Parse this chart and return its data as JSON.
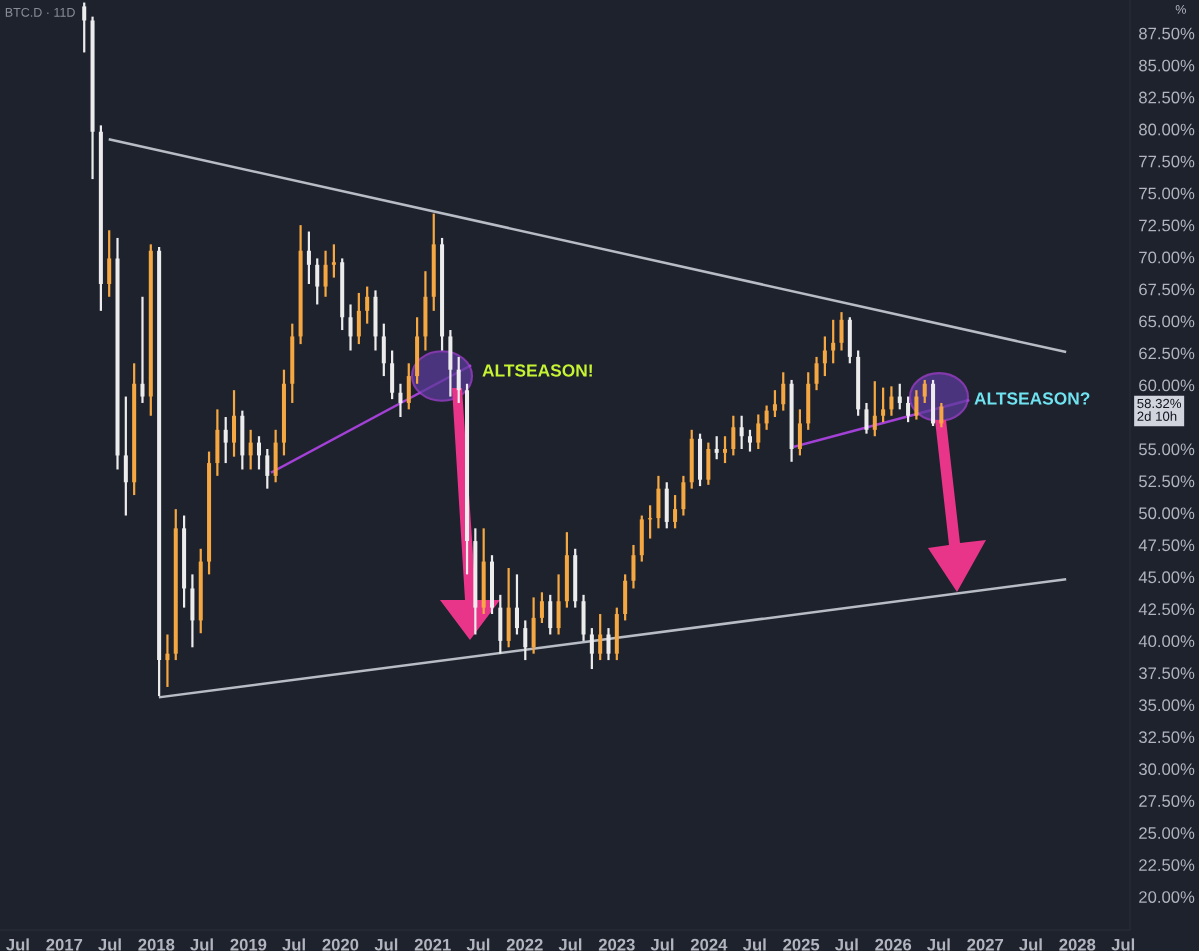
{
  "chart_data": {
    "type": "candlestick",
    "title": "BTC.D · 11D",
    "ylabel": "%",
    "x": [
      "2017-03-21",
      "2017-04-23",
      "2017-05-26",
      "2017-06-28",
      "2017-07-31",
      "2017-09-02",
      "2017-10-05",
      "2017-11-07",
      "2017-12-10",
      "2018-01-12",
      "2018-02-14",
      "2018-03-19",
      "2018-04-21",
      "2018-05-24",
      "2018-06-26",
      "2018-07-29",
      "2018-08-31",
      "2018-10-03",
      "2018-11-05",
      "2018-12-08",
      "2019-01-10",
      "2019-02-12",
      "2019-03-17",
      "2019-04-19",
      "2019-05-22",
      "2019-06-24",
      "2019-07-27",
      "2019-08-29",
      "2019-10-01",
      "2019-11-03",
      "2019-12-06",
      "2020-01-08",
      "2020-02-10",
      "2020-03-14",
      "2020-04-16",
      "2020-05-19",
      "2020-06-21",
      "2020-07-24",
      "2020-08-26",
      "2020-09-28",
      "2020-10-31",
      "2020-12-03",
      "2021-01-05",
      "2021-02-07",
      "2021-03-12",
      "2021-04-14",
      "2021-05-17",
      "2021-06-19",
      "2021-07-22",
      "2021-08-24",
      "2021-09-26",
      "2021-10-29",
      "2021-12-01",
      "2022-01-03",
      "2022-02-05",
      "2022-03-10",
      "2022-04-12",
      "2022-05-15",
      "2022-06-17",
      "2022-07-20",
      "2022-08-22",
      "2022-09-24",
      "2022-10-27",
      "2022-11-29",
      "2023-01-01",
      "2023-02-03",
      "2023-03-08",
      "2023-04-10",
      "2023-05-13",
      "2023-06-15",
      "2023-07-18",
      "2023-08-20",
      "2023-09-22",
      "2023-10-25",
      "2023-11-27",
      "2023-12-30",
      "2024-02-01",
      "2024-03-05",
      "2024-04-07",
      "2024-05-10",
      "2024-06-12",
      "2024-07-15",
      "2024-08-17",
      "2024-09-19",
      "2024-10-22",
      "2024-11-24",
      "2024-12-27",
      "2025-01-29",
      "2025-03-03",
      "2025-04-05",
      "2025-05-08",
      "2025-06-10",
      "2025-07-13",
      "2025-08-15",
      "2025-09-17",
      "2025-10-20",
      "2025-11-22",
      "2025-12-25",
      "2026-01-27",
      "2026-03-01",
      "2026-04-03",
      "2026-05-06",
      "2026-06-08",
      "2026-07-11"
    ],
    "ohlc": [
      [
        89.6,
        89.9,
        86.0,
        88.5
      ],
      [
        88.5,
        88.8,
        76.1,
        79.8
      ],
      [
        79.8,
        80.3,
        65.8,
        67.9
      ],
      [
        67.9,
        72.1,
        66.9,
        69.9
      ],
      [
        69.9,
        71.5,
        53.4,
        54.5
      ],
      [
        54.5,
        59.1,
        49.8,
        52.4
      ],
      [
        52.4,
        61.7,
        51.4,
        60.1
      ],
      [
        60.1,
        66.9,
        58.6,
        59.1
      ],
      [
        59.1,
        71.0,
        57.6,
        70.5
      ],
      [
        70.5,
        70.8,
        35.7,
        38.5
      ],
      [
        38.5,
        40.5,
        36.4,
        39.0
      ],
      [
        39.0,
        50.3,
        38.5,
        48.8
      ],
      [
        48.8,
        49.8,
        42.6,
        44.1
      ],
      [
        44.1,
        45.2,
        39.5,
        41.6
      ],
      [
        41.6,
        47.2,
        40.6,
        46.2
      ],
      [
        46.2,
        54.8,
        45.2,
        53.9
      ],
      [
        53.9,
        58.1,
        52.9,
        56.5
      ],
      [
        56.5,
        57.5,
        53.9,
        55.5
      ],
      [
        55.5,
        59.6,
        54.4,
        57.6
      ],
      [
        57.6,
        58.0,
        53.4,
        54.5
      ],
      [
        54.5,
        56.5,
        53.4,
        55.5
      ],
      [
        55.5,
        56.0,
        53.4,
        54.5
      ],
      [
        54.5,
        55.0,
        51.9,
        52.9
      ],
      [
        52.9,
        56.5,
        52.4,
        55.5
      ],
      [
        55.5,
        61.2,
        54.5,
        60.1
      ],
      [
        60.1,
        64.8,
        58.6,
        63.8
      ],
      [
        63.8,
        72.5,
        63.2,
        70.5
      ],
      [
        70.5,
        72.0,
        67.9,
        69.4
      ],
      [
        69.4,
        69.9,
        66.3,
        67.7
      ],
      [
        67.7,
        70.5,
        66.9,
        69.4
      ],
      [
        69.4,
        71.0,
        68.4,
        69.6
      ],
      [
        69.6,
        69.9,
        64.3,
        65.3
      ],
      [
        65.3,
        66.3,
        62.7,
        63.8
      ],
      [
        63.8,
        67.2,
        63.2,
        65.8
      ],
      [
        65.8,
        67.7,
        64.8,
        66.9
      ],
      [
        66.9,
        67.4,
        62.7,
        63.8
      ],
      [
        63.8,
        64.8,
        60.7,
        61.7
      ],
      [
        61.7,
        62.7,
        58.9,
        59.4
      ],
      [
        59.4,
        60.1,
        57.5,
        58.6
      ],
      [
        58.6,
        61.7,
        58.1,
        60.7
      ],
      [
        60.7,
        65.3,
        60.1,
        63.8
      ],
      [
        63.8,
        68.9,
        62.7,
        66.9
      ],
      [
        66.9,
        73.4,
        65.8,
        71.0
      ],
      [
        71.0,
        71.5,
        62.7,
        63.8
      ],
      [
        63.8,
        64.3,
        59.1,
        61.2
      ],
      [
        61.2,
        62.2,
        58.6,
        59.6
      ],
      [
        59.6,
        60.1,
        45.2,
        47.8
      ],
      [
        47.8,
        48.8,
        40.5,
        42.6
      ],
      [
        42.6,
        48.8,
        42.1,
        46.2
      ],
      [
        46.2,
        46.7,
        42.1,
        42.6
      ],
      [
        42.6,
        43.6,
        39.0,
        40.0
      ],
      [
        40.0,
        45.7,
        39.5,
        42.6
      ],
      [
        42.6,
        45.2,
        40.5,
        41.0
      ],
      [
        41.0,
        41.6,
        38.5,
        39.5
      ],
      [
        39.5,
        43.4,
        39.0,
        41.8
      ],
      [
        41.8,
        43.8,
        41.4,
        43.1
      ],
      [
        43.1,
        43.6,
        40.5,
        41.0
      ],
      [
        41.0,
        45.2,
        40.5,
        43.1
      ],
      [
        43.1,
        48.5,
        42.6,
        46.7
      ],
      [
        46.7,
        47.2,
        42.6,
        43.1
      ],
      [
        43.1,
        43.6,
        40.0,
        40.5
      ],
      [
        40.5,
        41.0,
        37.8,
        39.0
      ],
      [
        39.0,
        42.1,
        38.5,
        40.5
      ],
      [
        40.5,
        41.0,
        38.5,
        39.0
      ],
      [
        39.0,
        42.6,
        38.5,
        42.1
      ],
      [
        42.1,
        45.2,
        41.6,
        44.7
      ],
      [
        44.7,
        47.5,
        44.1,
        46.7
      ],
      [
        46.7,
        49.8,
        46.2,
        49.5
      ],
      [
        49.5,
        50.6,
        48.0,
        49.6
      ],
      [
        49.6,
        52.9,
        48.8,
        51.9
      ],
      [
        51.9,
        52.4,
        48.8,
        49.3
      ],
      [
        49.3,
        51.4,
        48.8,
        50.3
      ],
      [
        50.3,
        52.9,
        49.8,
        52.4
      ],
      [
        52.4,
        56.5,
        51.9,
        55.8
      ],
      [
        55.8,
        56.2,
        52.1,
        52.6
      ],
      [
        52.6,
        55.5,
        52.2,
        55.0
      ],
      [
        55.0,
        56.0,
        54.2,
        54.7
      ],
      [
        54.7,
        56.0,
        53.9,
        55.0
      ],
      [
        55.0,
        57.6,
        54.5,
        56.7
      ],
      [
        56.7,
        57.6,
        55.0,
        56.0
      ],
      [
        56.0,
        56.5,
        54.8,
        55.5
      ],
      [
        55.5,
        57.7,
        55.0,
        57.0
      ],
      [
        57.0,
        58.4,
        56.5,
        58.0
      ],
      [
        58.0,
        59.6,
        57.5,
        58.5
      ],
      [
        58.5,
        61.0,
        58.0,
        60.1
      ],
      [
        60.1,
        60.4,
        54.0,
        55.0
      ],
      [
        55.0,
        58.1,
        54.5,
        57.0
      ],
      [
        57.0,
        61.0,
        56.5,
        60.1
      ],
      [
        60.1,
        62.2,
        59.6,
        61.7
      ],
      [
        61.7,
        63.8,
        60.7,
        62.7
      ],
      [
        62.7,
        65.1,
        61.7,
        63.3
      ],
      [
        63.3,
        65.7,
        62.7,
        65.1
      ],
      [
        65.1,
        65.3,
        61.7,
        62.2
      ],
      [
        62.2,
        62.7,
        57.6,
        58.1
      ],
      [
        58.1,
        58.6,
        56.2,
        56.5
      ],
      [
        56.5,
        60.3,
        56.0,
        57.6
      ],
      [
        57.6,
        59.8,
        57.1,
        58.1
      ],
      [
        58.1,
        59.9,
        57.6,
        59.1
      ],
      [
        59.1,
        60.1,
        58.1,
        58.6
      ],
      [
        58.6,
        59.1,
        57.1,
        57.6
      ],
      [
        57.6,
        59.6,
        57.3,
        59.1
      ],
      [
        59.1,
        60.4,
        58.6,
        60.1
      ],
      [
        60.1,
        60.4,
        56.8,
        57.0
      ],
      [
        57.0,
        58.6,
        56.7,
        58.32
      ]
    ],
    "colors": [
      "#ececec",
      "#ececec",
      "#ececec",
      "#f5a742",
      "#ececec",
      "#ececec",
      "#f5a742",
      "#ececec",
      "#f5a742",
      "#ececec",
      "#f5a742",
      "#f5a742",
      "#ececec",
      "#ececec",
      "#f5a742",
      "#f5a742",
      "#f5a742",
      "#ececec",
      "#f5a742",
      "#ececec",
      "#f5a742",
      "#ececec",
      "#ececec",
      "#f5a742",
      "#f5a742",
      "#f5a742",
      "#f5a742",
      "#ececec",
      "#ececec",
      "#f5a742",
      "#f5a742",
      "#ececec",
      "#ececec",
      "#f5a742",
      "#f5a742",
      "#ececec",
      "#ececec",
      "#ececec",
      "#ececec",
      "#f5a742",
      "#f5a742",
      "#f5a742",
      "#f5a742",
      "#ececec",
      "#ececec",
      "#ececec",
      "#ececec",
      "#ececec",
      "#f5a742",
      "#ececec",
      "#ececec",
      "#f5a742",
      "#ececec",
      "#ececec",
      "#f5a742",
      "#f5a742",
      "#ececec",
      "#f5a742",
      "#f5a742",
      "#ececec",
      "#ececec",
      "#ececec",
      "#f5a742",
      "#ececec",
      "#f5a742",
      "#f5a742",
      "#f5a742",
      "#f5a742",
      "#f5a742",
      "#f5a742",
      "#ececec",
      "#f5a742",
      "#f5a742",
      "#f5a742",
      "#ececec",
      "#f5a742",
      "#ececec",
      "#f5a742",
      "#f5a742",
      "#ececec",
      "#ececec",
      "#f5a742",
      "#f5a742",
      "#f5a742",
      "#f5a742",
      "#ececec",
      "#f5a742",
      "#f5a742",
      "#f5a742",
      "#f5a742",
      "#f5a742",
      "#f5a742",
      "#ececec",
      "#ececec",
      "#ececec",
      "#f5a742",
      "#f5a742",
      "#f5a742",
      "#ececec",
      "#ececec",
      "#f5a742",
      "#f5a742",
      "#ececec",
      "#f5a742"
    ],
    "series": [
      {
        "type": "line",
        "color": "#b8bcc4",
        "x": [
          "2017-07-01",
          "2027-11-13"
        ],
        "values": [
          79.2,
          62.6
        ]
      },
      {
        "type": "line",
        "color": "#b8bcc4",
        "x": [
          "2018-01-16",
          "2027-11-13"
        ],
        "values": [
          35.6,
          44.8
        ]
      },
      {
        "type": "line",
        "color": "#a341d6",
        "x": [
          "2019-04-05",
          "2021-05-29"
        ],
        "values": [
          53.2,
          61.5
        ]
      },
      {
        "type": "line",
        "color": "#a341d6",
        "x": [
          "2024-12-08",
          "2026-10-25"
        ],
        "values": [
          55.2,
          58.8
        ]
      }
    ],
    "line_style": "solid",
    "annotations": [
      "ALTSEASON!",
      "ALTSEASON?",
      "58.32%\n2d 10h"
    ],
    "xlim": [
      "2016-04-21",
      "2028-07-28"
    ],
    "xticks": [
      {
        "value": "2016-07-01",
        "label": "Jul"
      },
      {
        "value": "2017-01-01",
        "label": "2017"
      },
      {
        "value": "2017-07-01",
        "label": "Jul"
      },
      {
        "value": "2018-01-01",
        "label": "2018"
      },
      {
        "value": "2018-07-01",
        "label": "Jul"
      },
      {
        "value": "2019-01-01",
        "label": "2019"
      },
      {
        "value": "2019-07-01",
        "label": "Jul"
      },
      {
        "value": "2020-01-01",
        "label": "2020"
      },
      {
        "value": "2020-07-01",
        "label": "Jul"
      },
      {
        "value": "2021-01-01",
        "label": "2021"
      },
      {
        "value": "2021-07-01",
        "label": "Jul"
      },
      {
        "value": "2022-01-01",
        "label": "2022"
      },
      {
        "value": "2022-07-01",
        "label": "Jul"
      },
      {
        "value": "2023-01-01",
        "label": "2023"
      },
      {
        "value": "2023-07-01",
        "label": "Jul"
      },
      {
        "value": "2024-01-01",
        "label": "2024"
      },
      {
        "value": "2024-07-01",
        "label": "Jul"
      },
      {
        "value": "2025-01-01",
        "label": "2025"
      },
      {
        "value": "2025-07-01",
        "label": "Jul"
      },
      {
        "value": "2026-01-01",
        "label": "2026"
      },
      {
        "value": "2026-07-01",
        "label": "Jul"
      },
      {
        "value": "2027-01-01",
        "label": "2027"
      },
      {
        "value": "2027-07-01",
        "label": "Jul"
      },
      {
        "value": "2028-01-01",
        "label": "2028"
      },
      {
        "value": "2028-07-01",
        "label": "Jul"
      }
    ],
    "ylim": [
      17.4,
      90.1
    ],
    "yticks": [
      {
        "value": 20,
        "label": "20.00%"
      },
      {
        "value": 22.5,
        "label": "22.50%"
      },
      {
        "value": 25,
        "label": "25.00%"
      },
      {
        "value": 27.5,
        "label": "27.50%"
      },
      {
        "value": 30,
        "label": "30.00%"
      },
      {
        "value": 32.5,
        "label": "32.50%"
      },
      {
        "value": 35,
        "label": "35.00%"
      },
      {
        "value": 37.5,
        "label": "37.50%"
      },
      {
        "value": 40,
        "label": "40.00%"
      },
      {
        "value": 42.5,
        "label": "42.50%"
      },
      {
        "value": 45,
        "label": "45.00%"
      },
      {
        "value": 47.5,
        "label": "47.50%"
      },
      {
        "value": 50,
        "label": "50.00%"
      },
      {
        "value": 52.5,
        "label": "52.50%"
      },
      {
        "value": 55,
        "label": "55.00%"
      },
      {
        "value": 60,
        "label": "60.00%"
      },
      {
        "value": 62.5,
        "label": "62.50%"
      },
      {
        "value": 65,
        "label": "65.00%"
      },
      {
        "value": 67.5,
        "label": "67.50%"
      },
      {
        "value": 70,
        "label": "70.00%"
      },
      {
        "value": 72.5,
        "label": "72.50%"
      },
      {
        "value": 75,
        "label": "75.00%"
      },
      {
        "value": 77.5,
        "label": "77.50%"
      },
      {
        "value": 80,
        "label": "80.00%"
      },
      {
        "value": 82.5,
        "label": "82.50%"
      },
      {
        "value": 85,
        "label": "85.00%"
      },
      {
        "value": 87.5,
        "label": "87.50%"
      }
    ],
    "grid": false
  }
}
